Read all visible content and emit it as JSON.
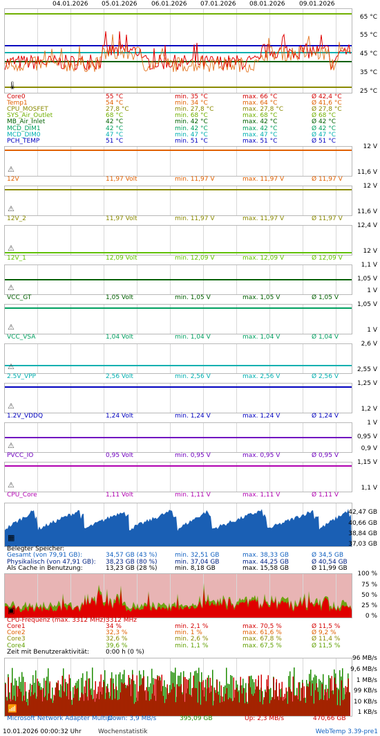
{
  "dates": [
    "04.01.2026",
    "05.01.2026",
    "06.01.2026",
    "07.01.2026",
    "08.01.2026",
    "09.01.2026"
  ],
  "temp": {
    "axis": [
      "65 °C",
      "55 °C",
      "45 °C",
      "35 °C",
      "25 °C"
    ],
    "rows": [
      {
        "name": "Core0",
        "cur": "55 °C",
        "min": "min. 35 °C",
        "max": "max. 66 °C",
        "avg": "Ø 42,4 °C",
        "color": "#d40000"
      },
      {
        "name": "Temp1",
        "cur": "54 °C",
        "min": "min. 34 °C",
        "max": "max. 64 °C",
        "avg": "Ø 41,6 °C",
        "color": "#e06000"
      },
      {
        "name": "CPU_MOSFET",
        "cur": "27,8 °C",
        "min": "min. 27,8 °C",
        "max": "max. 27,8 °C",
        "avg": "Ø 27,8 °C",
        "color": "#8a8a00"
      },
      {
        "name": "SYS_Air_Outlet",
        "cur": "68 °C",
        "min": "min. 68 °C",
        "max": "max. 68 °C",
        "avg": "Ø 68 °C",
        "color": "#70b000"
      },
      {
        "name": "MB_Air_Inlet",
        "cur": "42 °C",
        "min": "min. 42 °C",
        "max": "max. 42 °C",
        "avg": "Ø 42 °C",
        "color": "#006000"
      },
      {
        "name": "MCD_DIM1",
        "cur": "42 °C",
        "min": "min. 42 °C",
        "max": "max. 42 °C",
        "avg": "Ø 42 °C",
        "color": "#00a060"
      },
      {
        "name": "MCD_DIM0",
        "cur": "47 °C",
        "min": "min. 47 °C",
        "max": "max. 47 °C",
        "avg": "Ø 47 °C",
        "color": "#00b0b0"
      },
      {
        "name": "PCH_TEMP",
        "cur": "51 °C",
        "min": "min. 51 °C",
        "max": "max. 51 °C",
        "avg": "Ø 51 °C",
        "color": "#0000c0"
      }
    ]
  },
  "voltages": [
    {
      "name": "12V",
      "cur": "11,97 Volt",
      "min": "min. 11,97 V",
      "max": "max. 11,97 V",
      "avg": "Ø 11,97 V",
      "color": "#e06000",
      "axis_top": "12 V",
      "axis_bottom": "11,6 V"
    },
    {
      "name": "12V_2",
      "cur": "11,97 Volt",
      "min": "min. 11,97 V",
      "max": "max. 11,97 V",
      "avg": "Ø 11,97 V",
      "color": "#8a8a00",
      "axis_top": "12 V",
      "axis_bottom": "11,6 V"
    },
    {
      "name": "12V_1",
      "cur": "12,09 Volt",
      "min": "min. 12,09 V",
      "max": "max. 12,09 V",
      "avg": "Ø 12,09 V",
      "color": "#60c000",
      "axis_top": "12,4 V",
      "axis_bottom": "12 V"
    },
    {
      "name": "VCC_GT",
      "cur": "1,05 Volt",
      "min": "min. 1,05 V",
      "max": "max. 1,05 V",
      "avg": "Ø 1,05 V",
      "color": "#006000",
      "axis_top": "1,1 V",
      "axis_mid": "1,05 V",
      "axis_bottom": "1 V"
    },
    {
      "name": "VCC_VSA",
      "cur": "1,04 Volt",
      "min": "min. 1,04 V",
      "max": "max. 1,04 V",
      "avg": "Ø 1,04 V",
      "color": "#00a060",
      "axis_top": "1,05 V",
      "axis_bottom": "1 V"
    },
    {
      "name": "2.5V_VPP",
      "cur": "2,56 Volt",
      "min": "min. 2,56 V",
      "max": "max. 2,56 V",
      "avg": "Ø 2,56 V",
      "color": "#00b0b0",
      "axis_top": "2,6 V",
      "axis_bottom": "2,55 V"
    },
    {
      "name": "1.2V_VDDQ",
      "cur": "1,24 Volt",
      "min": "min. 1,24 V",
      "max": "max. 1,24 V",
      "avg": "Ø 1,24 V",
      "color": "#0000c0",
      "axis_top": "1,25 V",
      "axis_bottom": "1,2 V"
    },
    {
      "name": "PVCC_IO",
      "cur": "0,95 Volt",
      "min": "min. 0,95 V",
      "max": "max. 0,95 V",
      "avg": "Ø 0,95 V",
      "color": "#7000c0",
      "axis_top": "1 V",
      "axis_mid": "0,95 V",
      "axis_bottom": "0,9 V"
    },
    {
      "name": "CPU_Core",
      "cur": "1,11 Volt",
      "min": "min. 1,11 V",
      "max": "max. 1,11 V",
      "avg": "Ø 1,11 V",
      "color": "#b000b0",
      "axis_top": "1,15 V",
      "axis_bottom": "1,1 V"
    }
  ],
  "memory": {
    "axis": [
      "42,47 GB",
      "40,66 GB",
      "38,84 GB",
      "37,03 GB"
    ],
    "header": "Belegter Speicher:",
    "rows": [
      {
        "name": "Gesamt (von 79,91 GB):",
        "cur": "34,57 GB (43 %)",
        "min": "min. 32,51 GB",
        "max": "max. 38,33 GB",
        "avg": "Ø 34,5 GB",
        "color": "#1060c0"
      },
      {
        "name": "Physikalisch (von 47,91 GB):",
        "cur": "38,23 GB (80 %)",
        "min": "min. 37,04 GB",
        "max": "max. 44,25 GB",
        "avg": "Ø 40,54 GB",
        "color": "#002080"
      },
      {
        "name": "Als Cache in Benutzung:",
        "cur": "13,23 GB (28 %)",
        "min": "min. 8,18 GB",
        "max": "max. 15,58 GB",
        "avg": "Ø 11,99 GB",
        "color": "#000000"
      }
    ]
  },
  "cpu": {
    "axis": [
      "100 %",
      "75 %",
      "50 %",
      "25 %",
      "0 %"
    ],
    "freq_label": "CPU-Frequenz (max. 3312 MHz):",
    "freq_value": "3312 MHz",
    "rows": [
      {
        "name": "Core1",
        "cur": "34 %",
        "min": "min. 2,1 %",
        "max": "max. 70,5 %",
        "avg": "Ø 11,5 %",
        "color": "#d40000"
      },
      {
        "name": "Core2",
        "cur": "32,3 %",
        "min": "min. 1 %",
        "max": "max. 61,6 %",
        "avg": "Ø 9,2 %",
        "color": "#e06000"
      },
      {
        "name": "Core3",
        "cur": "32,6 %",
        "min": "min. 2,6 %",
        "max": "max. 67,8 %",
        "avg": "Ø 11,4 %",
        "color": "#8a8a00"
      },
      {
        "name": "Core4",
        "cur": "39,6 %",
        "min": "min. 1,1 %",
        "max": "max. 67,5 %",
        "avg": "Ø 11,5 %",
        "color": "#60a000"
      }
    ],
    "activity_label": "Zeit mit Benutzeraktivität:",
    "activity_value": "0:00 h (0 %)"
  },
  "network": {
    "axis": [
      "96 MB/s",
      "9,6 MB/s",
      "1 MB/s",
      "99 KB/s",
      "10 KB/s",
      "1 KB/s"
    ],
    "adapter": "Microsoft Network Adapter Multipl",
    "down": "Down: 3,9 MB/s",
    "down_total": "395,09 GB",
    "up": "Up: 2,3 MB/s",
    "up_total": "470,66 GB"
  },
  "footer": {
    "timestamp": "10.01.2026 00:00:32 Uhr",
    "stat_link": "Wochenstatistik",
    "version": "WebTemp 3.39-pre1"
  },
  "colors": {
    "core": "#e00000",
    "mem_fill": "#1a5fb4",
    "cpu_bg": "#e8b4b4",
    "net_down": "#1e8c00",
    "net_up": "#d00000"
  }
}
